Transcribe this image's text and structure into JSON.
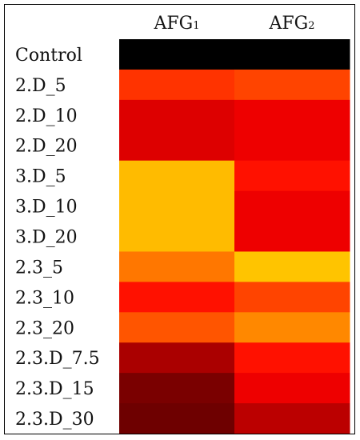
{
  "chart_data": {
    "type": "heatmap",
    "columns": [
      {
        "label": "AFG",
        "sub": "1"
      },
      {
        "label": "AFG",
        "sub": "2"
      }
    ],
    "rows": [
      "Control",
      "2.D_5",
      "2.D_10",
      "2.D_20",
      "3.D_5",
      "3.D_10",
      "3.D_20",
      "2.3_5",
      "2.3_10",
      "2.3_20",
      "2.3.D_7.5",
      "2.3.D_15",
      "2.3.D_30"
    ],
    "cells": [
      [
        "#000000",
        "#000000"
      ],
      [
        "#ff3300",
        "#ff4400"
      ],
      [
        "#dd0000",
        "#ee0000"
      ],
      [
        "#dd0000",
        "#ee0000"
      ],
      [
        "#ffbb00",
        "#ff1100"
      ],
      [
        "#ffbb00",
        "#ee0000"
      ],
      [
        "#ffbb00",
        "#ee0000"
      ],
      [
        "#ff7700",
        "#ffc400"
      ],
      [
        "#ff1100",
        "#ff4400"
      ],
      [
        "#ff5500",
        "#ff8800"
      ],
      [
        "#aa0000",
        "#ff1100"
      ],
      [
        "#7a0000",
        "#ee0000"
      ],
      [
        "#6e0000",
        "#bb0000"
      ]
    ]
  }
}
